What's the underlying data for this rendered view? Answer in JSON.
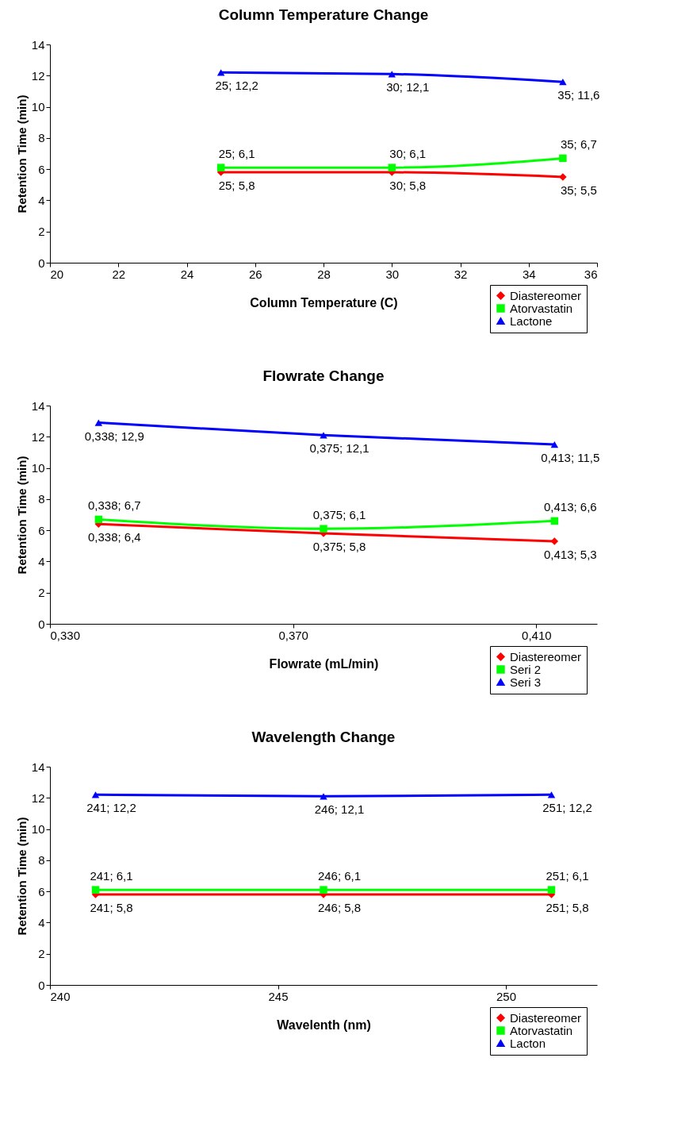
{
  "chart_data": [
    {
      "type": "line",
      "title": "Column Temperature Change",
      "xlabel": "Column Temperature (C)",
      "ylabel": "Retention Time (min)",
      "x": [
        25,
        30,
        35
      ],
      "xlim": [
        20,
        36
      ],
      "xticks": [
        20,
        22,
        24,
        26,
        28,
        30,
        32,
        34,
        36
      ],
      "ylim": [
        0,
        14
      ],
      "yticks": [
        0,
        2,
        4,
        6,
        8,
        10,
        12,
        14
      ],
      "legend": "bottom right",
      "grid": false,
      "series": [
        {
          "name": "Diastereomer",
          "color": "#ff0000",
          "marker": "diamond",
          "values": [
            5.8,
            5.8,
            5.5
          ],
          "value_labels": [
            "25; 5,8",
            "30; 5,8",
            "35; 5,5"
          ]
        },
        {
          "name": "Atorvastatin",
          "color": "#00ff00",
          "marker": "square",
          "values": [
            6.1,
            6.1,
            6.7
          ],
          "value_labels": [
            "25; 6,1",
            "30; 6,1",
            "35; 6,7"
          ]
        },
        {
          "name": "Lactone",
          "color": "#0000ff",
          "marker": "triangle",
          "values": [
            12.2,
            12.1,
            11.6
          ],
          "value_labels": [
            "25; 12,2",
            "30; 12,1",
            "35; 11,6"
          ]
        }
      ]
    },
    {
      "type": "line",
      "title": "Flowrate Change",
      "xlabel": "Flowrate (mL/min)",
      "ylabel": "Retention Time (min)",
      "x": [
        0.338,
        0.375,
        0.413
      ],
      "xlim": [
        0.33,
        0.42
      ],
      "xticks": [
        {
          "value": 0.33,
          "label": "0,330"
        },
        {
          "value": 0.37,
          "label": "0,370"
        },
        {
          "value": 0.41,
          "label": "0,410"
        }
      ],
      "ylim": [
        0,
        14
      ],
      "yticks": [
        0,
        2,
        4,
        6,
        8,
        10,
        12,
        14
      ],
      "legend": "bottom right",
      "grid": false,
      "series": [
        {
          "name": "Diastereomer",
          "color": "#ff0000",
          "marker": "diamond",
          "values": [
            6.4,
            5.8,
            5.3
          ],
          "value_labels": [
            "0,338; 6,4",
            "0,375; 5,8",
            "0,413; 5,3"
          ]
        },
        {
          "name": "Seri 2",
          "color": "#00ff00",
          "marker": "square",
          "values": [
            6.7,
            6.1,
            6.6
          ],
          "value_labels": [
            "0,338; 6,7",
            "0,375; 6,1",
            "0,413; 6,6"
          ]
        },
        {
          "name": "Seri 3",
          "color": "#0000ff",
          "marker": "triangle",
          "values": [
            12.9,
            12.1,
            11.5
          ],
          "value_labels": [
            "0,338; 12,9",
            "0,375; 12,1",
            "0,413; 11,5"
          ]
        }
      ]
    },
    {
      "type": "line",
      "title": "Wavelength Change",
      "xlabel": "Wavelenth (nm)",
      "ylabel": "Retention Time (min)",
      "x": [
        241,
        246,
        251
      ],
      "xlim": [
        240,
        252
      ],
      "xticks": [
        240,
        245,
        250
      ],
      "ylim": [
        0,
        14
      ],
      "yticks": [
        0,
        2,
        4,
        6,
        8,
        10,
        12,
        14
      ],
      "legend": "bottom right",
      "grid": false,
      "series": [
        {
          "name": "Diastereomer",
          "color": "#ff0000",
          "marker": "diamond",
          "values": [
            5.8,
            5.8,
            5.8
          ],
          "value_labels": [
            "241; 5,8",
            "246; 5,8",
            "251; 5,8"
          ]
        },
        {
          "name": "Atorvastatin",
          "color": "#00ff00",
          "marker": "square",
          "values": [
            6.1,
            6.1,
            6.1
          ],
          "value_labels": [
            "241; 6,1",
            "246; 6,1",
            "251; 6,1"
          ]
        },
        {
          "name": "Lacton",
          "color": "#0000ff",
          "marker": "triangle",
          "values": [
            12.2,
            12.1,
            12.2
          ],
          "value_labels": [
            "241; 12,2",
            "246; 12,1",
            "251; 12,2"
          ]
        }
      ]
    }
  ]
}
